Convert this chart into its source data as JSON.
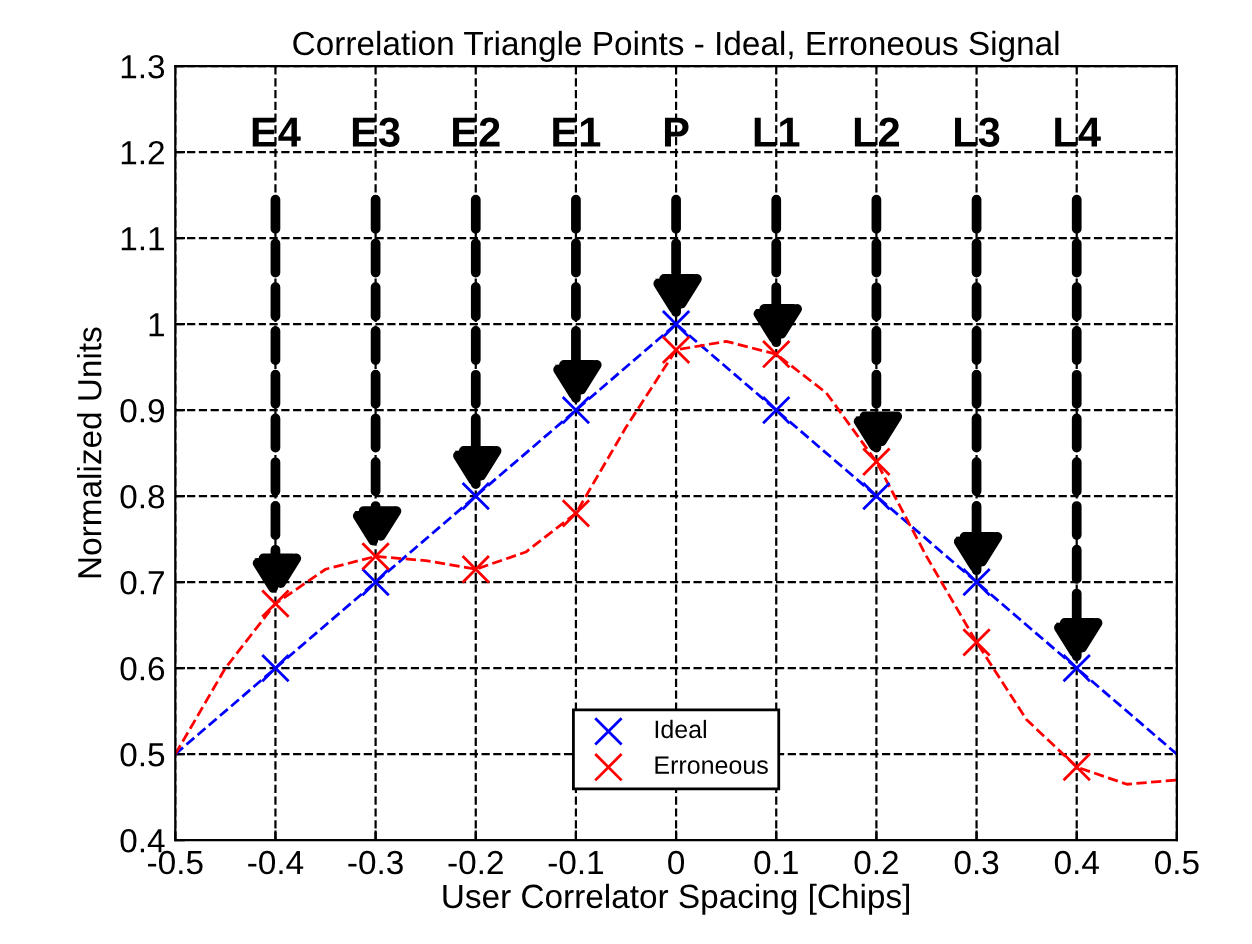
{
  "chart_data": {
    "type": "line",
    "title": "Correlation Triangle Points - Ideal, Erroneous Signal",
    "xlabel": "User Correlator Spacing [Chips]",
    "ylabel": "Normalized Units",
    "xlim": [
      -0.5,
      0.5
    ],
    "ylim": [
      0.4,
      1.3
    ],
    "xticks": [
      -0.5,
      -0.4,
      -0.3,
      -0.2,
      -0.1,
      0,
      0.1,
      0.2,
      0.3,
      0.4,
      0.5
    ],
    "yticks": [
      0.4,
      0.5,
      0.6,
      0.7,
      0.8,
      0.9,
      1,
      1.1,
      1.2,
      1.3
    ],
    "grid": true,
    "legend": "bottom",
    "series": [
      {
        "color": "#0000ff",
        "line_style": "dashed",
        "marker": "none",
        "x": [
          -0.5,
          0,
          0.5
        ],
        "values": [
          0.5,
          1,
          0.5
        ]
      },
      {
        "color": "#ff0000",
        "line_style": "dashed",
        "marker": "none",
        "x": [
          -0.5,
          -0.45,
          -0.4,
          -0.35,
          -0.3,
          -0.25,
          -0.2,
          -0.15,
          -0.1,
          -0.05,
          0,
          0.05,
          0.1,
          0.15,
          0.2,
          0.25,
          0.3,
          0.35,
          0.4,
          0.45,
          0.5
        ],
        "values": [
          0.5,
          0.6,
          0.675,
          0.715,
          0.73,
          0.725,
          0.715,
          0.735,
          0.78,
          0.88,
          0.97,
          0.98,
          0.965,
          0.92,
          0.84,
          0.73,
          0.63,
          0.54,
          0.485,
          0.465,
          0.47
        ]
      },
      {
        "type": "scatter",
        "name": "Ideal",
        "color": "#0000ff",
        "marker": "cross",
        "x": [
          -0.4,
          -0.3,
          -0.2,
          -0.1,
          0,
          0.1,
          0.2,
          0.3,
          0.4
        ],
        "values": [
          0.6,
          0.7,
          0.8,
          0.9,
          1.0,
          0.9,
          0.8,
          0.7,
          0.6
        ]
      },
      {
        "type": "scatter",
        "name": "Erroneous",
        "color": "#ff0000",
        "marker": "cross",
        "x": [
          -0.4,
          -0.3,
          -0.2,
          -0.1,
          0,
          0.1,
          0.2,
          0.3,
          0.4
        ],
        "values": [
          0.675,
          0.73,
          0.715,
          0.78,
          0.97,
          0.965,
          0.84,
          0.63,
          0.485
        ]
      }
    ],
    "annotations": [
      {
        "text": "E4",
        "x": -0.4,
        "y": 0.675
      },
      {
        "text": "E3",
        "x": -0.3,
        "y": 0.73
      },
      {
        "text": "E2",
        "x": -0.2,
        "y": 0.8
      },
      {
        "text": "E1",
        "x": -0.1,
        "y": 0.9
      },
      {
        "text": "P",
        "x": 0,
        "y": 1.0
      },
      {
        "text": "L1",
        "x": 0.1,
        "y": 0.965
      },
      {
        "text": "L2",
        "x": 0.2,
        "y": 0.84
      },
      {
        "text": "L3",
        "x": 0.3,
        "y": 0.7
      },
      {
        "text": "L4",
        "x": 0.4,
        "y": 0.6
      }
    ]
  }
}
